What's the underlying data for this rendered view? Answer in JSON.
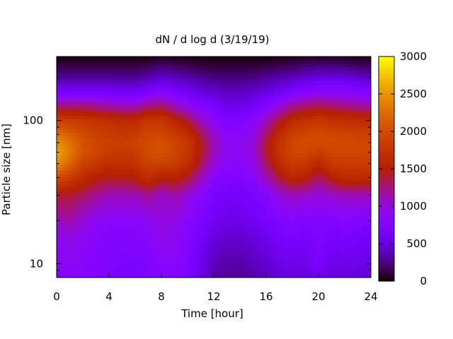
{
  "chart_data": {
    "type": "heatmap",
    "title": "dN / d log d (3/19/19)",
    "xlabel": "Time [hour]",
    "ylabel": "Particle size [nm]",
    "x_ticks": [
      "0",
      "4",
      "8",
      "12",
      "16",
      "20",
      "24"
    ],
    "x_tick_values": [
      0,
      4,
      8,
      12,
      16,
      20,
      24
    ],
    "y_ticks": [
      "10",
      "100"
    ],
    "y_tick_values": [
      10,
      100
    ],
    "y_scale": "log",
    "xlim": [
      0,
      24
    ],
    "ylim_nm": [
      8,
      280
    ],
    "colorbar": {
      "ticks": [
        "0",
        "500",
        "1000",
        "1500",
        "2000",
        "2500",
        "3000"
      ],
      "tick_values": [
        0,
        500,
        1000,
        1500,
        2000,
        2500,
        3000
      ],
      "range": [
        0,
        3000
      ],
      "palette": "black-purple-red-orange-yellow (gnuplot pm3d default)"
    },
    "times_hour": [
      0,
      1,
      2,
      3,
      4,
      5,
      6,
      7,
      8,
      9,
      10,
      11,
      12,
      13,
      14,
      15,
      16,
      17,
      18,
      19,
      20,
      21,
      22,
      23,
      24
    ],
    "sizes_nm": [
      8,
      10,
      15,
      20,
      30,
      40,
      50,
      60,
      70,
      80,
      100,
      130,
      160,
      200,
      250,
      280
    ],
    "values": [
      [
        700,
        800,
        800,
        750,
        700,
        650,
        650,
        700,
        800,
        800,
        700,
        500,
        350,
        300,
        300,
        350,
        400,
        500,
        500,
        500,
        600,
        500,
        500,
        500,
        450
      ],
      [
        800,
        900,
        850,
        800,
        750,
        700,
        700,
        750,
        850,
        850,
        750,
        550,
        400,
        350,
        350,
        400,
        450,
        550,
        550,
        550,
        700,
        550,
        550,
        550,
        500
      ],
      [
        900,
        950,
        900,
        850,
        800,
        750,
        800,
        850,
        950,
        900,
        800,
        650,
        500,
        450,
        450,
        500,
        550,
        650,
        700,
        650,
        750,
        650,
        700,
        650,
        600
      ],
      [
        1100,
        1150,
        1000,
        900,
        850,
        850,
        850,
        900,
        1000,
        950,
        850,
        700,
        600,
        550,
        550,
        600,
        650,
        750,
        800,
        750,
        800,
        750,
        800,
        750,
        750
      ],
      [
        1400,
        1400,
        1300,
        1200,
        1100,
        1100,
        1100,
        1200,
        1050,
        1150,
        1000,
        850,
        700,
        650,
        650,
        700,
        800,
        1000,
        1100,
        1050,
        1000,
        1050,
        1100,
        1100,
        1100
      ],
      [
        2000,
        1850,
        1650,
        1500,
        1450,
        1450,
        1500,
        1700,
        1500,
        1550,
        1400,
        1100,
        850,
        750,
        750,
        850,
        1100,
        1400,
        1600,
        1500,
        1300,
        1500,
        1650,
        1650,
        1650
      ],
      [
        2450,
        2200,
        1900,
        1800,
        1700,
        1700,
        1750,
        1900,
        1900,
        1850,
        1700,
        1350,
        1000,
        850,
        850,
        950,
        1300,
        1650,
        1850,
        1800,
        1600,
        1800,
        1850,
        1850,
        1850
      ],
      [
        2600,
        2350,
        2050,
        1950,
        1850,
        1800,
        1850,
        2000,
        2050,
        1950,
        1800,
        1450,
        1100,
        900,
        900,
        1000,
        1400,
        1750,
        1950,
        1950,
        1850,
        1950,
        1950,
        1950,
        1950
      ],
      [
        2500,
        2300,
        2050,
        1950,
        1900,
        1850,
        1900,
        2000,
        2050,
        1950,
        1800,
        1450,
        1100,
        900,
        900,
        1000,
        1400,
        1750,
        1950,
        2000,
        2000,
        2000,
        2000,
        1950,
        1950
      ],
      [
        2300,
        2150,
        2000,
        1900,
        1850,
        1800,
        1850,
        1950,
        1950,
        1850,
        1700,
        1350,
        1050,
        850,
        850,
        950,
        1300,
        1650,
        1900,
        1950,
        2000,
        1950,
        1950,
        1900,
        1900
      ],
      [
        1900,
        1850,
        1800,
        1750,
        1700,
        1650,
        1650,
        1800,
        1800,
        1600,
        1400,
        1100,
        900,
        750,
        750,
        850,
        1100,
        1400,
        1650,
        1750,
        1800,
        1750,
        1700,
        1700,
        1650
      ],
      [
        1200,
        1200,
        1200,
        1150,
        1100,
        1050,
        1050,
        1200,
        1250,
        1050,
        900,
        750,
        650,
        550,
        550,
        600,
        750,
        950,
        1150,
        1250,
        1300,
        1250,
        1200,
        1150,
        1100
      ],
      [
        650,
        650,
        650,
        650,
        650,
        600,
        600,
        700,
        800,
        700,
        600,
        500,
        450,
        400,
        400,
        450,
        500,
        600,
        700,
        800,
        850,
        850,
        850,
        800,
        750
      ],
      [
        300,
        300,
        300,
        300,
        300,
        300,
        300,
        350,
        450,
        400,
        350,
        300,
        250,
        250,
        250,
        250,
        300,
        350,
        400,
        450,
        500,
        500,
        500,
        450,
        400
      ],
      [
        100,
        100,
        100,
        100,
        100,
        100,
        100,
        120,
        180,
        150,
        120,
        100,
        80,
        80,
        80,
        80,
        100,
        120,
        150,
        180,
        200,
        200,
        180,
        150,
        150
      ],
      [
        30,
        30,
        30,
        30,
        30,
        30,
        30,
        40,
        60,
        50,
        40,
        30,
        25,
        25,
        25,
        25,
        30,
        40,
        50,
        60,
        70,
        70,
        60,
        50,
        50
      ]
    ]
  }
}
